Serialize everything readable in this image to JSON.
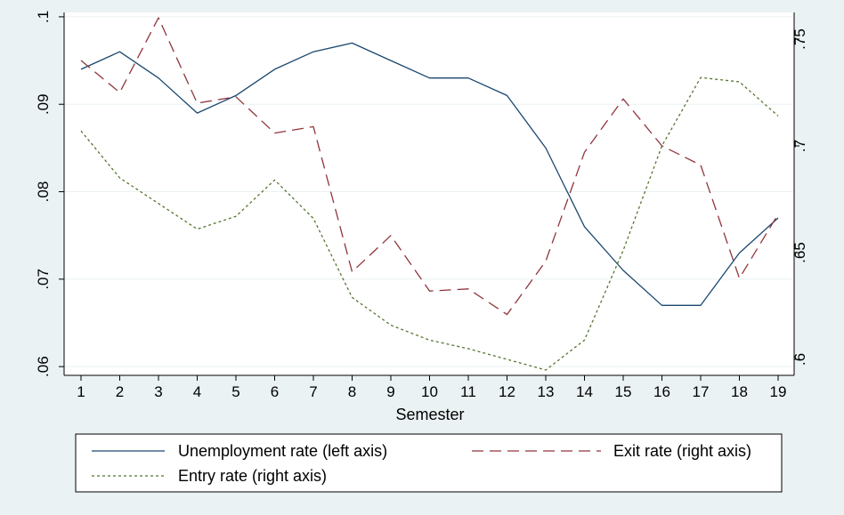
{
  "chart_data": {
    "type": "line",
    "title": "",
    "xlabel": "Semester",
    "ylabel_left": "",
    "ylabel_right": "",
    "x": [
      1,
      2,
      3,
      4,
      5,
      6,
      7,
      8,
      9,
      10,
      11,
      12,
      13,
      14,
      15,
      16,
      17,
      18,
      19
    ],
    "x_ticks": [
      "1",
      "2",
      "3",
      "4",
      "5",
      "6",
      "7",
      "8",
      "9",
      "10",
      "11",
      "12",
      "13",
      "14",
      "15",
      "16",
      "17",
      "18",
      "19"
    ],
    "left_axis": {
      "ylim": [
        0.059,
        0.1005
      ],
      "ticks": [
        0.06,
        0.07,
        0.08,
        0.09,
        0.1
      ],
      "tick_labels": [
        ".06",
        ".07",
        ".08",
        ".09",
        ".1"
      ]
    },
    "right_axis": {
      "ylim": [
        0.5925,
        0.7625
      ],
      "ticks": [
        0.6,
        0.65,
        0.7,
        0.75
      ],
      "tick_labels": [
        ".6",
        ".65",
        ".7",
        ".75"
      ]
    },
    "series": [
      {
        "name": "Unemployment rate (left axis)",
        "axis": "left",
        "style": "solid",
        "color": "#1a476f",
        "values": [
          0.094,
          0.096,
          0.093,
          0.089,
          0.091,
          0.094,
          0.096,
          0.097,
          0.095,
          0.093,
          0.093,
          0.091,
          0.085,
          0.076,
          0.071,
          0.067,
          0.067,
          0.073,
          0.077
        ]
      },
      {
        "name": "Exit rate (right axis)",
        "axis": "right",
        "style": "dashed",
        "color": "#90353b",
        "values": [
          0.74,
          0.725,
          0.76,
          0.72,
          0.723,
          0.706,
          0.709,
          0.641,
          0.658,
          0.632,
          0.633,
          0.621,
          0.646,
          0.697,
          0.722,
          0.7,
          0.691,
          0.638,
          0.668
        ]
      },
      {
        "name": "Entry rate (right axis)",
        "axis": "right",
        "style": "dotted",
        "color": "#55752f",
        "values": [
          0.707,
          0.685,
          0.673,
          0.661,
          0.667,
          0.684,
          0.666,
          0.629,
          0.616,
          0.609,
          0.605,
          0.6,
          0.595,
          0.609,
          0.651,
          0.7,
          0.732,
          0.73,
          0.714
        ]
      }
    ],
    "grid": true,
    "legend_position": "bottom"
  }
}
